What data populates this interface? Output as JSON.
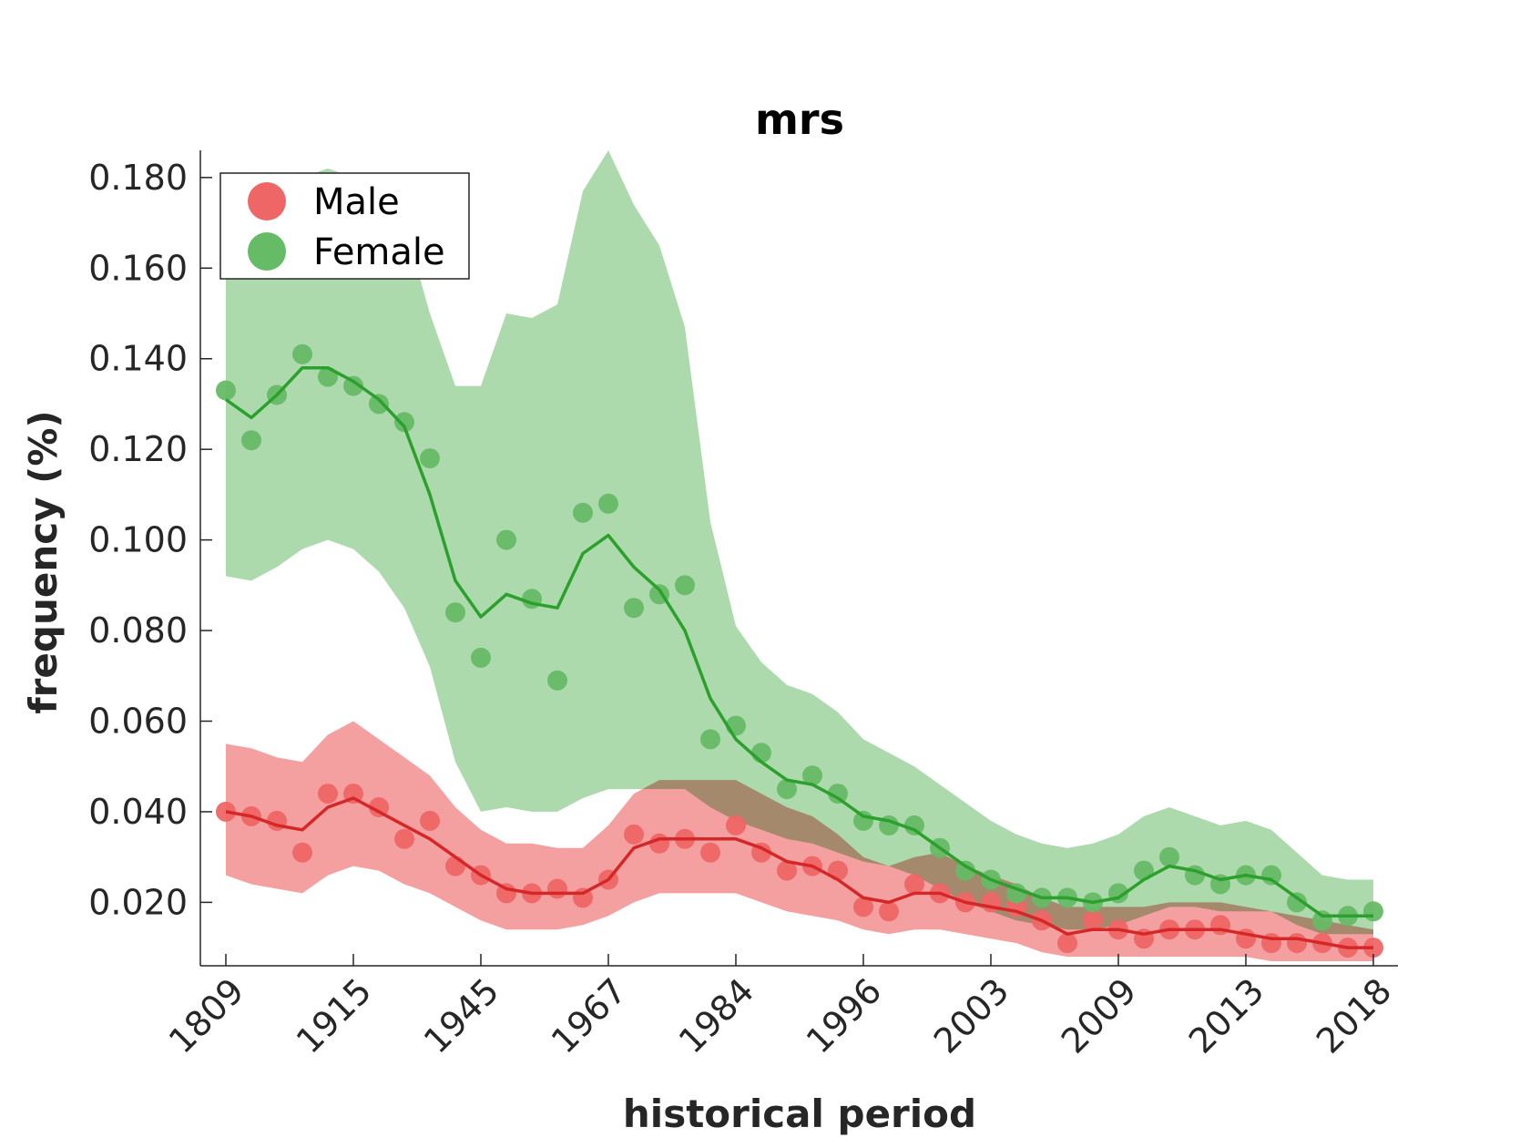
{
  "chart_data": {
    "type": "scatter",
    "title": "mrs",
    "xlabel": "historical period",
    "ylabel": "frequency (%)",
    "ylim": [
      0.006,
      0.186
    ],
    "yticks": [
      "0.020",
      "0.040",
      "0.060",
      "0.080",
      "0.100",
      "0.120",
      "0.140",
      "0.160",
      "0.180"
    ],
    "ytick_values": [
      0.02,
      0.04,
      0.06,
      0.08,
      0.1,
      0.12,
      0.14,
      0.16,
      0.18
    ],
    "xticks": [
      {
        "index": 0,
        "label": "1809"
      },
      {
        "index": 5,
        "label": "1915"
      },
      {
        "index": 10,
        "label": "1945"
      },
      {
        "index": 15,
        "label": "1967"
      },
      {
        "index": 20,
        "label": "1984"
      },
      {
        "index": 25,
        "label": "1996"
      },
      {
        "index": 30,
        "label": "2003"
      },
      {
        "index": 35,
        "label": "2009"
      },
      {
        "index": 40,
        "label": "2013"
      },
      {
        "index": 45,
        "label": "2018"
      }
    ],
    "grid": false,
    "legend_position": "top-left",
    "series": [
      {
        "name": "Male",
        "color": "#d62728",
        "marker_color": "#ee6666",
        "band_color": "#ee6666",
        "points": [
          0.04,
          0.039,
          0.038,
          0.031,
          0.044,
          0.044,
          0.041,
          0.034,
          0.038,
          0.028,
          0.026,
          0.022,
          0.022,
          0.023,
          0.021,
          0.025,
          0.035,
          0.033,
          0.034,
          0.031,
          0.037,
          0.031,
          0.027,
          0.028,
          0.027,
          0.019,
          0.018,
          0.024,
          0.022,
          0.02,
          0.02,
          0.019,
          0.016,
          0.011,
          0.016,
          0.014,
          0.012,
          0.014,
          0.014,
          0.015,
          0.012,
          0.011,
          0.011,
          0.011,
          0.01,
          0.01
        ],
        "trend": [
          0.04,
          0.039,
          0.037,
          0.036,
          0.041,
          0.043,
          0.04,
          0.037,
          0.034,
          0.03,
          0.026,
          0.023,
          0.022,
          0.022,
          0.022,
          0.025,
          0.032,
          0.034,
          0.034,
          0.034,
          0.034,
          0.032,
          0.029,
          0.028,
          0.025,
          0.021,
          0.02,
          0.022,
          0.022,
          0.02,
          0.019,
          0.018,
          0.016,
          0.013,
          0.014,
          0.014,
          0.013,
          0.014,
          0.014,
          0.014,
          0.013,
          0.012,
          0.012,
          0.011,
          0.01,
          0.01
        ],
        "lower": [
          0.026,
          0.024,
          0.023,
          0.022,
          0.026,
          0.028,
          0.027,
          0.024,
          0.022,
          0.019,
          0.016,
          0.014,
          0.014,
          0.014,
          0.015,
          0.017,
          0.02,
          0.022,
          0.022,
          0.022,
          0.022,
          0.02,
          0.018,
          0.017,
          0.016,
          0.014,
          0.013,
          0.014,
          0.014,
          0.013,
          0.012,
          0.011,
          0.009,
          0.008,
          0.008,
          0.008,
          0.008,
          0.008,
          0.008,
          0.008,
          0.008,
          0.007,
          0.007,
          0.007,
          0.007,
          0.007
        ],
        "upper": [
          0.055,
          0.054,
          0.052,
          0.051,
          0.057,
          0.06,
          0.056,
          0.052,
          0.048,
          0.041,
          0.036,
          0.033,
          0.033,
          0.032,
          0.032,
          0.037,
          0.044,
          0.047,
          0.047,
          0.047,
          0.047,
          0.044,
          0.041,
          0.039,
          0.035,
          0.03,
          0.028,
          0.03,
          0.031,
          0.028,
          0.026,
          0.024,
          0.021,
          0.019,
          0.019,
          0.019,
          0.019,
          0.02,
          0.02,
          0.02,
          0.019,
          0.018,
          0.017,
          0.016,
          0.015,
          0.014
        ]
      },
      {
        "name": "Female",
        "color": "#2ca02c",
        "marker_color": "#66bb66",
        "band_color": "#9fd49f",
        "points": [
          0.133,
          0.122,
          0.132,
          0.141,
          0.136,
          0.134,
          0.13,
          0.126,
          0.118,
          0.084,
          0.074,
          0.1,
          0.087,
          0.069,
          0.106,
          0.108,
          0.085,
          0.088,
          0.09,
          0.056,
          0.059,
          0.053,
          0.045,
          0.048,
          0.044,
          0.038,
          0.037,
          0.037,
          0.032,
          0.027,
          0.025,
          0.022,
          0.021,
          0.021,
          0.02,
          0.022,
          0.027,
          0.03,
          0.026,
          0.024,
          0.026,
          0.026,
          0.02,
          0.016,
          0.017,
          0.018
        ],
        "trend": [
          0.131,
          0.127,
          0.132,
          0.138,
          0.138,
          0.135,
          0.131,
          0.125,
          0.11,
          0.091,
          0.083,
          0.088,
          0.086,
          0.085,
          0.097,
          0.101,
          0.094,
          0.089,
          0.08,
          0.065,
          0.056,
          0.051,
          0.047,
          0.046,
          0.043,
          0.039,
          0.038,
          0.036,
          0.032,
          0.028,
          0.025,
          0.023,
          0.021,
          0.021,
          0.02,
          0.021,
          0.025,
          0.028,
          0.027,
          0.025,
          0.026,
          0.025,
          0.021,
          0.017,
          0.017,
          0.017
        ],
        "lower": [
          0.092,
          0.091,
          0.094,
          0.098,
          0.1,
          0.098,
          0.093,
          0.085,
          0.072,
          0.051,
          0.04,
          0.041,
          0.04,
          0.04,
          0.043,
          0.045,
          0.045,
          0.045,
          0.045,
          0.041,
          0.038,
          0.036,
          0.034,
          0.033,
          0.031,
          0.029,
          0.028,
          0.026,
          0.023,
          0.02,
          0.018,
          0.016,
          0.015,
          0.014,
          0.014,
          0.015,
          0.017,
          0.019,
          0.019,
          0.018,
          0.018,
          0.018,
          0.015,
          0.013,
          0.013,
          0.013
        ],
        "upper": [
          0.178,
          0.17,
          0.175,
          0.18,
          0.182,
          0.18,
          0.177,
          0.17,
          0.15,
          0.134,
          0.134,
          0.15,
          0.149,
          0.152,
          0.177,
          0.186,
          0.174,
          0.165,
          0.147,
          0.104,
          0.081,
          0.073,
          0.068,
          0.066,
          0.062,
          0.056,
          0.053,
          0.05,
          0.046,
          0.042,
          0.038,
          0.035,
          0.033,
          0.032,
          0.033,
          0.035,
          0.039,
          0.041,
          0.039,
          0.037,
          0.038,
          0.036,
          0.031,
          0.026,
          0.025,
          0.025
        ]
      }
    ]
  }
}
